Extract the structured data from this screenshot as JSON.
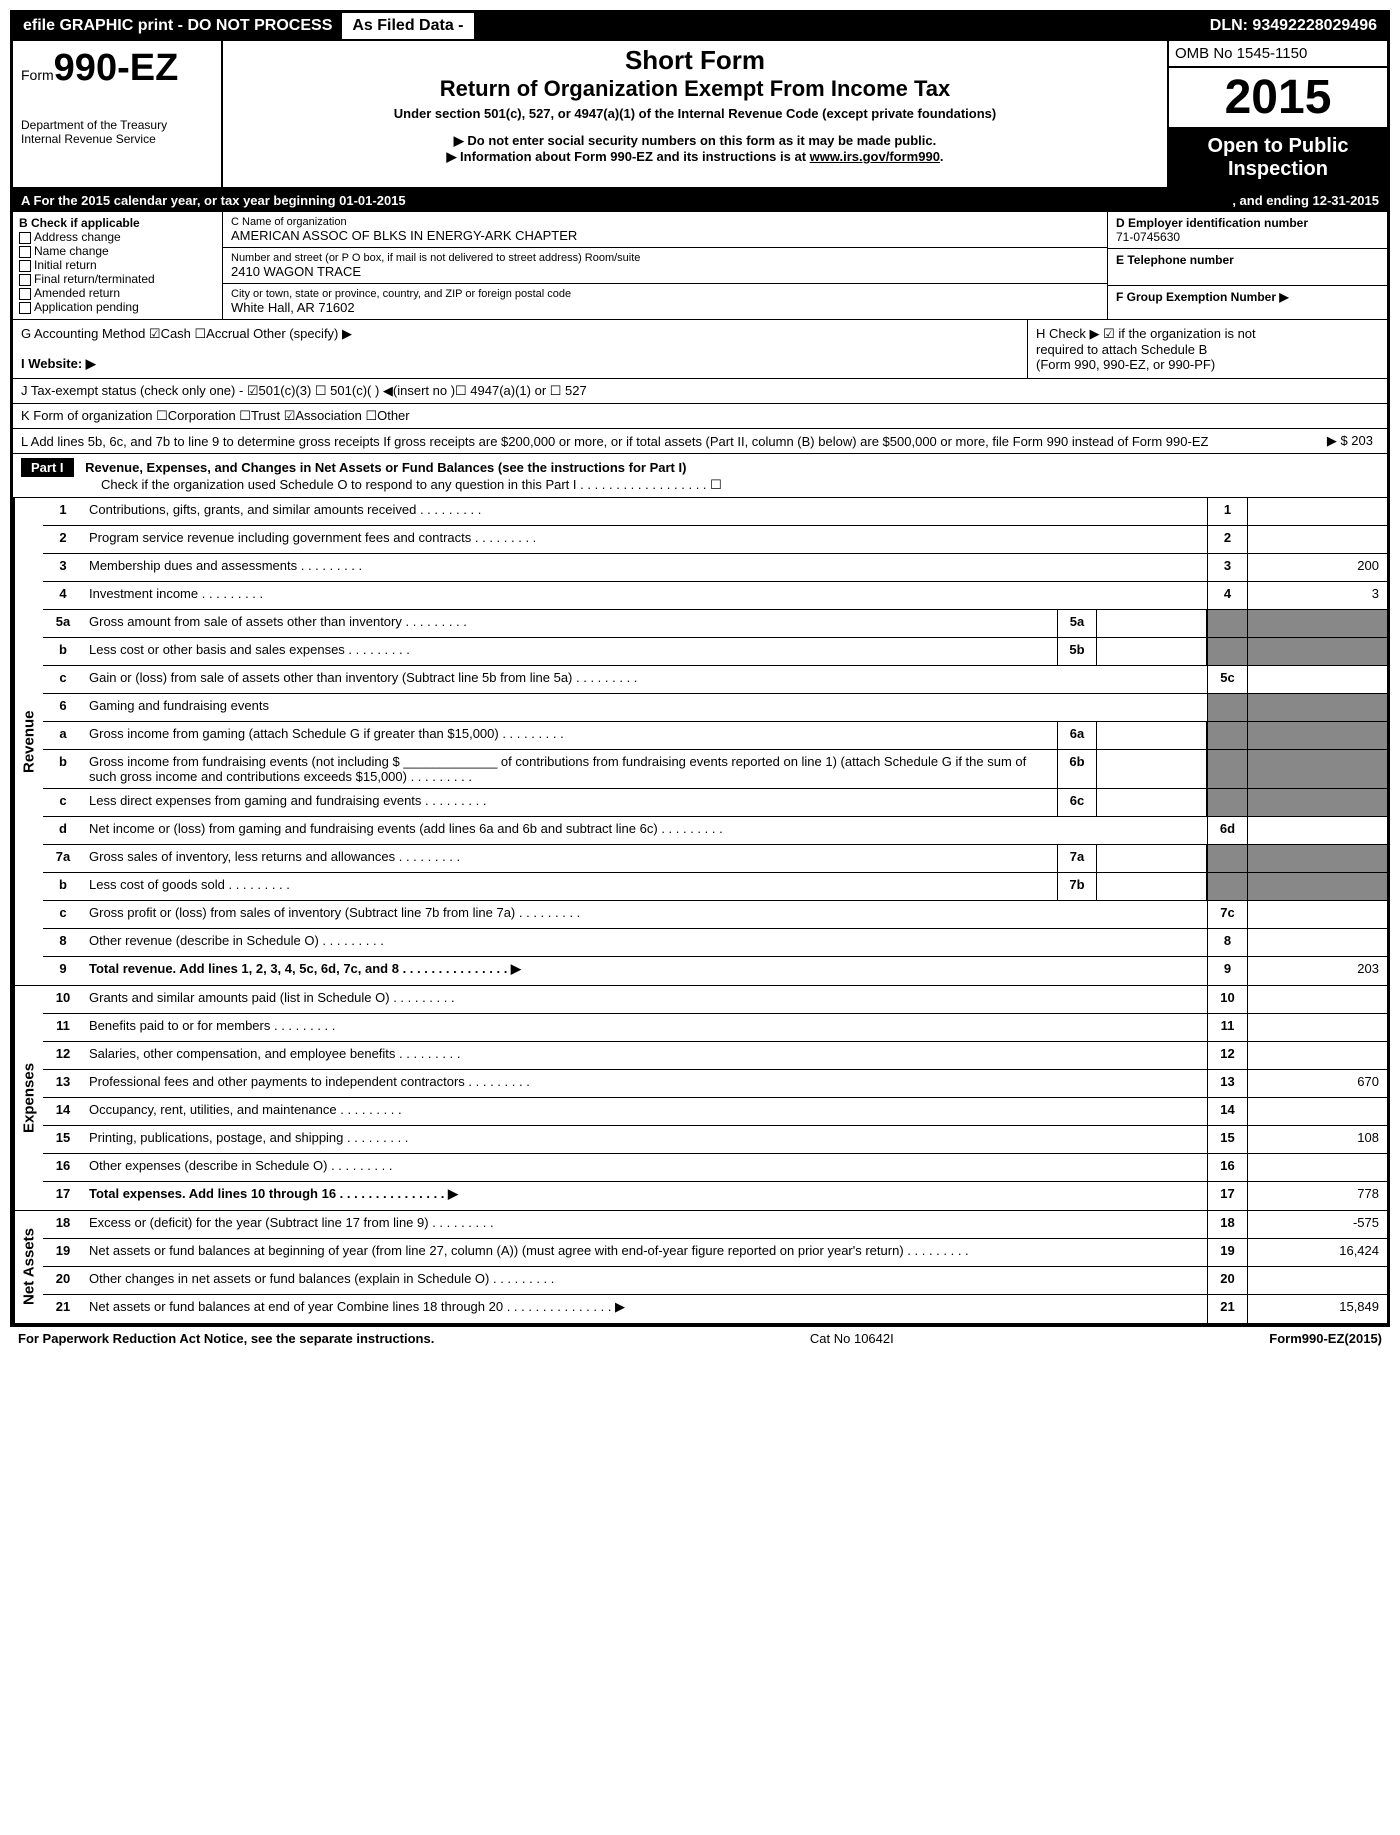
{
  "topbar": {
    "efile": "efile GRAPHIC print - DO NOT PROCESS",
    "asfiled": "As Filed Data -",
    "dln": "DLN: 93492228029496"
  },
  "header": {
    "form_prefix": "Form",
    "form_no": "990-EZ",
    "dept1": "Department of the Treasury",
    "dept2": "Internal Revenue Service",
    "title1": "Short Form",
    "title2": "Return of Organization Exempt From Income Tax",
    "subtitle": "Under section 501(c), 527, or 4947(a)(1) of the Internal Revenue Code (except private foundations)",
    "warn1": "▶ Do not enter social security numbers on this form as it may be made public.",
    "warn2_pre": "▶ Information about Form 990-EZ and its instructions is at ",
    "warn2_link": "www.irs.gov/form990",
    "omb": "OMB No 1545-1150",
    "year": "2015",
    "inspect1": "Open to Public",
    "inspect2": "Inspection"
  },
  "rowA": {
    "a": "A  For the 2015 calendar year, or tax year beginning 01-01-2015",
    "end": ", and ending 12-31-2015"
  },
  "B": {
    "hdr": "B  Check if applicable",
    "items": [
      "Address change",
      "Name change",
      "Initial return",
      "Final return/terminated",
      "Amended return",
      "Application pending"
    ]
  },
  "C": {
    "name_lbl": "C Name of organization",
    "name": "AMERICAN ASSOC OF BLKS IN ENERGY-ARK CHAPTER",
    "addr_lbl": "Number and street (or P  O  box, if mail is not delivered to street address) Room/suite",
    "addr": "2410 WAGON TRACE",
    "city_lbl": "City or town, state or province, country, and ZIP or foreign postal code",
    "city": "White Hall, AR  71602"
  },
  "D": {
    "ein_lbl": "D Employer identification number",
    "ein": "71-0745630",
    "tel_lbl": "E Telephone number",
    "grp_lbl": "F Group Exemption Number   ▶"
  },
  "G": "G Accounting Method   ☑Cash  ☐Accrual  Other (specify) ▶",
  "H": {
    "l1": "H   Check ▶ ☑ if the organization is not",
    "l2": "required to attach Schedule B",
    "l3": "(Form 990, 990-EZ, or 990-PF)"
  },
  "I": "I Website: ▶",
  "J": "J Tax-exempt status (check only one) - ☑501(c)(3) ☐ 501(c)(  ) ◀(insert no )☐ 4947(a)(1) or ☐ 527",
  "K": "K Form of organization   ☐Corporation  ☐Trust  ☑Association  ☐Other",
  "L": {
    "txt": "L Add lines 5b, 6c, and 7b to line 9 to determine gross receipts  If gross receipts are $200,000 or more, or if total assets (Part II, column (B) below) are $500,000 or more, file Form 990 instead of Form 990-EZ",
    "amt": "▶ $ 203"
  },
  "partI": {
    "label": "Part I",
    "title": "Revenue, Expenses, and Changes in Net Assets or Fund Balances (see the instructions for Part I)",
    "check": "Check if the organization used Schedule O to respond to any question in this Part I . . . . . . . . . . . . . . . . . . ☐"
  },
  "sections": [
    {
      "side": "Revenue",
      "lines": [
        {
          "n": "1",
          "txt": "Contributions, gifts, grants, and similar amounts received",
          "rn": "1",
          "rv": ""
        },
        {
          "n": "2",
          "txt": "Program service revenue including government fees and contracts",
          "rn": "2",
          "rv": ""
        },
        {
          "n": "3",
          "txt": "Membership dues and assessments",
          "rn": "3",
          "rv": "200"
        },
        {
          "n": "4",
          "txt": "Investment income",
          "rn": "4",
          "rv": "3"
        },
        {
          "n": "5a",
          "txt": "Gross amount from sale of assets other than inventory",
          "sub": "5a",
          "shade": true
        },
        {
          "n": "b",
          "txt": "Less  cost or other basis and sales expenses",
          "sub": "5b",
          "shade": true
        },
        {
          "n": "c",
          "txt": "Gain or (loss) from sale of assets other than inventory (Subtract line 5b from line 5a)",
          "rn": "5c",
          "rv": ""
        },
        {
          "n": "6",
          "txt": "Gaming and fundraising events",
          "shade": true
        },
        {
          "n": "a",
          "txt": "Gross income from gaming (attach Schedule G if greater than $15,000)",
          "sub": "6a",
          "shade": true
        },
        {
          "n": "b",
          "txt": "Gross income from fundraising events (not including $ _____________ of contributions from fundraising events reported on line 1) (attach Schedule G if the sum of such gross income and contributions exceeds $15,000)",
          "sub": "6b",
          "shade": true
        },
        {
          "n": "c",
          "txt": "Less  direct expenses from gaming and fundraising events",
          "sub": "6c",
          "shade": true
        },
        {
          "n": "d",
          "txt": "Net income or (loss) from gaming and fundraising events (add lines 6a and 6b and subtract line 6c)",
          "rn": "6d",
          "rv": ""
        },
        {
          "n": "7a",
          "txt": "Gross sales of inventory, less returns and allowances",
          "sub": "7a",
          "shade": true
        },
        {
          "n": "b",
          "txt": "Less  cost of goods sold",
          "sub": "7b",
          "shade": true
        },
        {
          "n": "c",
          "txt": "Gross profit or (loss) from sales of inventory (Subtract line 7b from line 7a)",
          "rn": "7c",
          "rv": ""
        },
        {
          "n": "8",
          "txt": "Other revenue (describe in Schedule O)",
          "rn": "8",
          "rv": ""
        },
        {
          "n": "9",
          "txt": "Total revenue. Add lines 1, 2, 3, 4, 5c, 6d, 7c, and 8",
          "rn": "9",
          "rv": "203",
          "bold": true,
          "arrow": true
        }
      ]
    },
    {
      "side": "Expenses",
      "lines": [
        {
          "n": "10",
          "txt": "Grants and similar amounts paid (list in Schedule O)",
          "rn": "10",
          "rv": ""
        },
        {
          "n": "11",
          "txt": "Benefits paid to or for members",
          "rn": "11",
          "rv": ""
        },
        {
          "n": "12",
          "txt": "Salaries, other compensation, and employee benefits",
          "rn": "12",
          "rv": ""
        },
        {
          "n": "13",
          "txt": "Professional fees and other payments to independent contractors",
          "rn": "13",
          "rv": "670"
        },
        {
          "n": "14",
          "txt": "Occupancy, rent, utilities, and maintenance",
          "rn": "14",
          "rv": ""
        },
        {
          "n": "15",
          "txt": "Printing, publications, postage, and shipping",
          "rn": "15",
          "rv": "108"
        },
        {
          "n": "16",
          "txt": "Other expenses (describe in Schedule O)",
          "rn": "16",
          "rv": ""
        },
        {
          "n": "17",
          "txt": "Total expenses. Add lines 10 through 16",
          "rn": "17",
          "rv": "778",
          "bold": true,
          "arrow": true
        }
      ]
    },
    {
      "side": "Net Assets",
      "lines": [
        {
          "n": "18",
          "txt": "Excess or (deficit) for the year (Subtract line 17 from line 9)",
          "rn": "18",
          "rv": "-575"
        },
        {
          "n": "19",
          "txt": "Net assets or fund balances at beginning of year (from line 27, column (A)) (must agree with end-of-year figure reported on prior year's return)",
          "rn": "19",
          "rv": "16,424"
        },
        {
          "n": "20",
          "txt": "Other changes in net assets or fund balances (explain in Schedule O)",
          "rn": "20",
          "rv": ""
        },
        {
          "n": "21",
          "txt": "Net assets or fund balances at end of year  Combine lines 18 through 20",
          "rn": "21",
          "rv": "15,849",
          "arrow": true
        }
      ]
    }
  ],
  "footer": {
    "left": "For Paperwork Reduction Act Notice, see the separate instructions.",
    "mid": "Cat No 10642I",
    "right": "Form 990-EZ (2015)"
  }
}
